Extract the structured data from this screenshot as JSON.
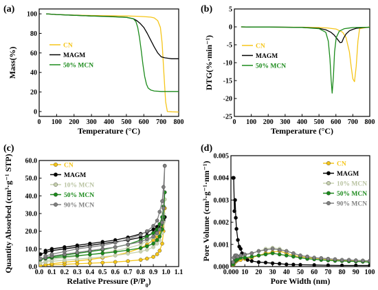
{
  "chart_data": [
    {
      "panel_label": "(a)",
      "type": "line",
      "xlabel": "Temperature (°C)",
      "ylabel": "Mass(%)",
      "xlim": [
        0,
        800
      ],
      "ylim": [
        -5,
        105
      ],
      "xticks": [
        0,
        100,
        200,
        300,
        400,
        500,
        600,
        700,
        800
      ],
      "yticks": [
        0,
        20,
        40,
        60,
        80,
        100
      ],
      "legend_position": "center-left",
      "series": [
        {
          "name": "CN",
          "color": "#f5c518",
          "x": [
            40,
            100,
            200,
            300,
            400,
            500,
            560,
            600,
            640,
            660,
            680,
            695,
            705,
            715,
            725,
            735,
            760,
            800
          ],
          "y": [
            100,
            99.3,
            98.7,
            98.3,
            98,
            97.8,
            97.5,
            97.2,
            96.6,
            95.8,
            93,
            86,
            70,
            40,
            10,
            0,
            -0.3,
            -0.5
          ]
        },
        {
          "name": "MAGM",
          "color": "#000000",
          "x": [
            40,
            100,
            200,
            300,
            400,
            500,
            540,
            560,
            580,
            600,
            620,
            640,
            660,
            680,
            700,
            720,
            740,
            760,
            800
          ],
          "y": [
            100,
            99.3,
            98.5,
            97.8,
            97.3,
            96.5,
            95,
            93,
            90,
            86,
            80,
            73,
            66,
            60,
            56,
            55,
            54.5,
            54,
            54
          ]
        },
        {
          "name": "50% MCN",
          "color": "#1a8a1a",
          "x": [
            40,
            100,
            200,
            300,
            400,
            500,
            540,
            555,
            565,
            575,
            585,
            595,
            605,
            615,
            625,
            640,
            660,
            700,
            800
          ],
          "y": [
            100,
            99.3,
            98.5,
            97.8,
            97.2,
            96.4,
            95,
            92,
            86,
            76,
            63,
            48,
            36,
            28,
            24,
            22,
            21,
            20.5,
            20.5
          ]
        }
      ]
    },
    {
      "panel_label": "(b)",
      "type": "line",
      "xlabel": "Temperature (°C)",
      "ylabel": "DTG(%·min⁻¹)",
      "xlim": [
        0,
        800
      ],
      "ylim": [
        -25,
        5
      ],
      "xticks": [
        0,
        100,
        200,
        300,
        400,
        500,
        600,
        700,
        800
      ],
      "yticks": [
        5,
        0,
        -5,
        -10,
        -15,
        -20,
        -25
      ],
      "legend_position": "center-left",
      "series": [
        {
          "name": "CN",
          "color": "#f5c518",
          "x": [
            40,
            100,
            200,
            300,
            400,
            500,
            550,
            600,
            640,
            660,
            680,
            690,
            700,
            710,
            720,
            730,
            740,
            800
          ],
          "y": [
            0,
            -0.05,
            -0.05,
            -0.1,
            -0.1,
            -0.2,
            -0.3,
            -0.6,
            -1.5,
            -3,
            -7,
            -11,
            -14.5,
            -15.3,
            -11,
            -4,
            -0.5,
            0
          ]
        },
        {
          "name": "MAGM",
          "color": "#000000",
          "x": [
            40,
            100,
            200,
            300,
            400,
            500,
            540,
            570,
            590,
            610,
            625,
            635,
            645,
            660,
            680,
            700,
            720,
            760,
            800
          ],
          "y": [
            0,
            -0.05,
            -0.05,
            -0.1,
            -0.15,
            -0.4,
            -0.8,
            -1.5,
            -2.3,
            -3.5,
            -4.4,
            -4.3,
            -3.2,
            -2,
            -1.1,
            -0.7,
            -0.4,
            -0.2,
            -0.1
          ]
        },
        {
          "name": "50% MCN",
          "color": "#1a8a1a",
          "x": [
            40,
            100,
            200,
            300,
            400,
            500,
            540,
            555,
            565,
            572,
            578,
            585,
            592,
            602,
            620,
            650,
            700,
            800
          ],
          "y": [
            0,
            -0.05,
            -0.05,
            -0.1,
            -0.15,
            -0.5,
            -1.5,
            -4,
            -9,
            -15,
            -18.5,
            -14,
            -7,
            -3,
            -1.2,
            -0.5,
            -0.2,
            -0.1
          ]
        }
      ]
    },
    {
      "panel_label": "(c)",
      "type": "line",
      "xlabel": "Relative Pressure (P/P",
      "xlabel_sub": "0",
      "xlabel_tail": ")",
      "ylabel": "Quantity Absorbed (cm³·g⁻¹ STP)",
      "xlim": [
        0,
        1.1
      ],
      "ylim": [
        0,
        60
      ],
      "xticks": [
        0.0,
        0.1,
        0.2,
        0.3,
        0.4,
        0.5,
        0.6,
        0.7,
        0.8,
        0.9,
        1.0,
        1.1
      ],
      "yticks": [
        0,
        10,
        20,
        30,
        40,
        50,
        60
      ],
      "legend_position": "top-left",
      "series": [
        {
          "name": "CN",
          "color": "#f5c518",
          "x": [
            0.01,
            0.05,
            0.1,
            0.2,
            0.3,
            0.4,
            0.5,
            0.6,
            0.7,
            0.8,
            0.85,
            0.9,
            0.93,
            0.95,
            0.97,
            0.98,
            0.99,
            0.99,
            0.98,
            0.97,
            0.95,
            0.93,
            0.9,
            0.85,
            0.8,
            0.7,
            0.6,
            0.5,
            0.4,
            0.3,
            0.2,
            0.1,
            0.05
          ],
          "y": [
            0.5,
            0.8,
            1.0,
            1.3,
            1.6,
            1.9,
            2.2,
            2.6,
            3.1,
            3.8,
            4.5,
            5.5,
            7,
            9,
            13,
            20,
            33,
            33,
            27,
            22,
            19,
            17,
            15,
            12.5,
            10.5,
            8,
            6.3,
            5,
            4,
            3.2,
            2.5,
            1.6,
            1.1
          ]
        },
        {
          "name": "MAGM",
          "color": "#000000",
          "x": [
            0.01,
            0.05,
            0.1,
            0.2,
            0.3,
            0.4,
            0.5,
            0.6,
            0.7,
            0.8,
            0.85,
            0.9,
            0.93,
            0.95,
            0.97,
            0.98,
            0.99,
            0.99,
            0.98,
            0.97,
            0.95,
            0.93,
            0.9,
            0.85,
            0.8,
            0.7,
            0.6,
            0.5,
            0.4,
            0.3,
            0.2,
            0.1,
            0.05
          ],
          "y": [
            7,
            8,
            9,
            10,
            11,
            12,
            13,
            14,
            15,
            16.5,
            17.5,
            19,
            20.5,
            22,
            24,
            26,
            28,
            28,
            27,
            25,
            24,
            22.5,
            21,
            19.5,
            18.5,
            16.5,
            15,
            14,
            13,
            12,
            11,
            10,
            9
          ]
        },
        {
          "name": "10% MCN",
          "color": "#c8d2b0",
          "x": [
            0.01,
            0.05,
            0.1,
            0.2,
            0.3,
            0.4,
            0.5,
            0.6,
            0.7,
            0.8,
            0.85,
            0.9,
            0.93,
            0.95,
            0.97,
            0.98,
            0.99,
            0.99,
            0.98,
            0.97,
            0.95,
            0.93,
            0.9,
            0.85,
            0.8,
            0.7,
            0.6,
            0.5,
            0.4,
            0.3,
            0.2,
            0.1,
            0.05
          ],
          "y": [
            2,
            2.5,
            3,
            3.6,
            4.2,
            4.8,
            5.5,
            6.3,
            7.3,
            8.5,
            9.5,
            11,
            13,
            15,
            19,
            25,
            38,
            38,
            30,
            25,
            21,
            18.5,
            16.5,
            14.5,
            12.5,
            10.5,
            9,
            7.8,
            6.8,
            5.8,
            5,
            4,
            3
          ]
        },
        {
          "name": "50% MCN",
          "color": "#1a8a1a",
          "x": [
            0.01,
            0.05,
            0.1,
            0.2,
            0.3,
            0.4,
            0.5,
            0.6,
            0.7,
            0.8,
            0.85,
            0.9,
            0.93,
            0.95,
            0.97,
            0.98,
            0.99,
            0.99,
            0.98,
            0.97,
            0.95,
            0.93,
            0.9,
            0.85,
            0.8,
            0.7,
            0.6,
            0.5,
            0.4,
            0.3,
            0.2,
            0.1,
            0.05
          ],
          "y": [
            4,
            4.5,
            5,
            5.6,
            6.2,
            6.8,
            7.5,
            8.3,
            9.3,
            10.5,
            11.5,
            13,
            15,
            17,
            21,
            28,
            42,
            42,
            34,
            28,
            24,
            21,
            19,
            17,
            15,
            12.5,
            11,
            9.5,
            8.5,
            7.5,
            6.5,
            5.5,
            5
          ]
        },
        {
          "name": "90% MCN",
          "color": "#808080",
          "x": [
            0.01,
            0.05,
            0.1,
            0.2,
            0.3,
            0.4,
            0.5,
            0.6,
            0.7,
            0.8,
            0.85,
            0.9,
            0.93,
            0.95,
            0.97,
            0.98,
            0.99,
            0.99,
            0.98,
            0.97,
            0.95,
            0.93,
            0.9,
            0.85,
            0.8,
            0.7,
            0.6,
            0.5,
            0.4,
            0.3,
            0.2,
            0.1,
            0.05
          ],
          "y": [
            4.5,
            5.2,
            6,
            7,
            8,
            9,
            10,
            11,
            12.5,
            14,
            15.5,
            17,
            19,
            21,
            25,
            33,
            57,
            57,
            45,
            37,
            31,
            26,
            23,
            20,
            18,
            15.5,
            13.5,
            12,
            11,
            10,
            8.5,
            7,
            6
          ]
        }
      ]
    },
    {
      "panel_label": "(d)",
      "type": "line",
      "xlabel": "Pore Width (nm)",
      "ylabel": "Pore Volume (cm³·g⁻¹·nm⁻¹)",
      "xlim": [
        0,
        100
      ],
      "ylim": [
        0,
        0.005
      ],
      "xticks": [
        0,
        10,
        20,
        30,
        40,
        50,
        60,
        70,
        80,
        90,
        100
      ],
      "yticks": [
        0.0,
        0.001,
        0.002,
        0.003,
        0.004,
        0.005
      ],
      "legend_position": "top-right",
      "series": [
        {
          "name": "CN",
          "color": "#f5c518",
          "x": [
            1.5,
            2,
            3,
            4,
            5,
            7,
            10,
            15,
            20,
            25,
            30,
            35,
            40,
            45,
            50,
            55,
            60,
            65,
            70,
            75,
            80,
            85,
            90,
            95,
            100
          ],
          "y": [
            5e-05,
            0.0001,
            0.0002,
            0.00025,
            0.0003,
            0.0003,
            0.00035,
            0.0004,
            0.0005,
            0.0006,
            0.00065,
            0.0007,
            0.0006,
            0.0005,
            0.00045,
            0.0004,
            0.00038,
            0.00035,
            0.00033,
            0.0003,
            0.00028,
            0.00027,
            0.00026,
            0.00025,
            0.00025
          ]
        },
        {
          "name": "MAGM",
          "color": "#000000",
          "x": [
            1.5,
            2,
            2.5,
            3,
            3.5,
            4,
            5,
            6,
            7,
            8,
            10,
            12,
            15,
            20,
            25,
            30,
            35,
            40,
            45,
            50,
            60,
            70,
            80,
            90,
            100
          ],
          "y": [
            0.004,
            0.004,
            0.0025,
            0.003,
            0.0022,
            0.0017,
            0.0012,
            0.0009,
            0.0008,
            0.0006,
            0.0004,
            0.0003,
            0.00025,
            0.0002,
            0.00018,
            0.00015,
            0.00013,
            0.0001,
            9e-05,
            8e-05,
            7e-05,
            6e-05,
            5e-05,
            5e-05,
            5e-05
          ]
        },
        {
          "name": "10% MCN",
          "color": "#c8d2b0",
          "x": [
            1.5,
            2,
            3,
            4,
            5,
            7,
            10,
            15,
            20,
            25,
            30,
            35,
            40,
            45,
            50,
            55,
            60,
            65,
            70,
            75,
            80,
            85,
            90,
            95,
            100
          ],
          "y": [
            0.0001,
            0.0002,
            0.0003,
            0.0004,
            0.0004,
            0.00045,
            0.0005,
            0.0006,
            0.0007,
            0.0008,
            0.00085,
            0.0008,
            0.0007,
            0.0006,
            0.0005,
            0.00045,
            0.0004,
            0.00038,
            0.00035,
            0.00033,
            0.0003,
            0.0003,
            0.00028,
            0.00027,
            0.00025
          ]
        },
        {
          "name": "50% MCN",
          "color": "#1a8a1a",
          "x": [
            1.5,
            2,
            3,
            4,
            5,
            7,
            10,
            15,
            20,
            25,
            30,
            35,
            40,
            45,
            50,
            55,
            60,
            65,
            70,
            75,
            80,
            85,
            90,
            95,
            100
          ],
          "y": [
            0.0001,
            0.0002,
            0.00025,
            0.0003,
            0.00035,
            0.0004,
            0.0004,
            0.00045,
            0.0005,
            0.00055,
            0.0006,
            0.00055,
            0.0005,
            0.00045,
            0.0004,
            0.00035,
            0.00033,
            0.0003,
            0.00028,
            0.00026,
            0.00025,
            0.00024,
            0.00023,
            0.00022,
            0.0002
          ]
        },
        {
          "name": "90% MCN",
          "color": "#808080",
          "x": [
            1.5,
            2,
            3,
            4,
            5,
            7,
            10,
            15,
            20,
            25,
            30,
            35,
            40,
            45,
            50,
            55,
            60,
            65,
            70,
            75,
            80,
            85,
            90,
            95,
            100
          ],
          "y": [
            0.0002,
            0.0004,
            0.0005,
            0.0005,
            0.00045,
            0.0005,
            0.00055,
            0.0006,
            0.0007,
            0.00075,
            0.0008,
            0.00075,
            0.0007,
            0.0006,
            0.0005,
            0.00045,
            0.0004,
            0.00038,
            0.00035,
            0.00033,
            0.0003,
            0.0003,
            0.00028,
            0.00027,
            0.00026
          ]
        }
      ]
    }
  ]
}
